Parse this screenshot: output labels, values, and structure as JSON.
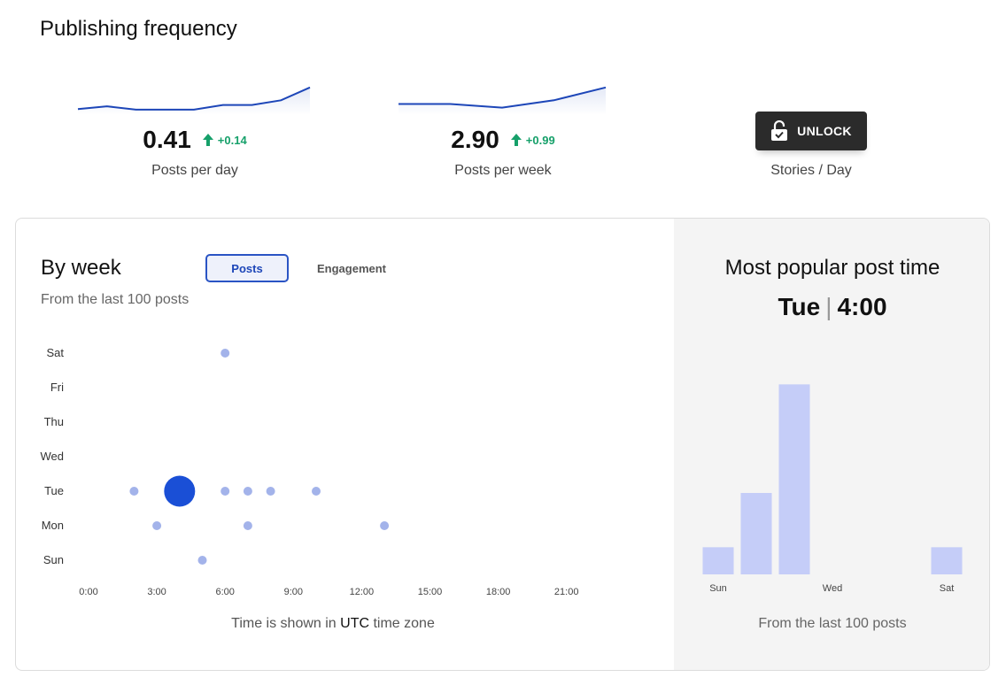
{
  "header": {
    "title": "Publishing frequency"
  },
  "metrics": [
    {
      "value": "0.41",
      "delta": "+0.14",
      "caption": "Posts per day",
      "trend": [
        0.18,
        0.26,
        0.16,
        0.16,
        0.16,
        0.3,
        0.3,
        0.44,
        0.82
      ]
    },
    {
      "value": "2.90",
      "delta": "+0.99",
      "caption": "Posts per week",
      "trend": [
        0.33,
        0.33,
        0.22,
        0.44,
        0.82
      ]
    }
  ],
  "unlock": {
    "label": "UNLOCK",
    "caption": "Stories / Day",
    "icon": "lock-open-icon"
  },
  "by_week": {
    "title": "By week",
    "subtitle": "From the last 100 posts",
    "tabs": [
      "Posts",
      "Engagement"
    ],
    "active_tab": "Posts",
    "note_prefix": "Time is shown in ",
    "note_strong": "UTC",
    "note_suffix": " time zone"
  },
  "popular": {
    "title": "Most popular post time",
    "day": "Tue",
    "time": "4:00",
    "footer": "From the last 100 posts"
  },
  "colors": {
    "accent": "#1d46b8",
    "dot": "#a3b3ea",
    "dot_highlight": "#1a4fd6",
    "bar": "#c5cdf8",
    "positive": "#16a06a",
    "spark": "#1d46b8"
  },
  "chart_data": [
    {
      "type": "scatter",
      "title": "By week",
      "x_ticks": [
        "0:00",
        "3:00",
        "6:00",
        "9:00",
        "12:00",
        "15:00",
        "18:00",
        "21:00"
      ],
      "y_categories": [
        "Sun",
        "Mon",
        "Tue",
        "Wed",
        "Thu",
        "Fri",
        "Sat"
      ],
      "xlim": [
        0,
        21
      ],
      "points": [
        {
          "day": "Sat",
          "hour": 6,
          "size": 1
        },
        {
          "day": "Tue",
          "hour": 2,
          "size": 1
        },
        {
          "day": "Tue",
          "hour": 4,
          "size": 3.5,
          "highlight": true
        },
        {
          "day": "Tue",
          "hour": 6,
          "size": 1
        },
        {
          "day": "Tue",
          "hour": 7,
          "size": 1
        },
        {
          "day": "Tue",
          "hour": 8,
          "size": 1
        },
        {
          "day": "Tue",
          "hour": 10,
          "size": 1
        },
        {
          "day": "Mon",
          "hour": 3,
          "size": 1
        },
        {
          "day": "Mon",
          "hour": 7,
          "size": 1
        },
        {
          "day": "Mon",
          "hour": 13,
          "size": 1
        },
        {
          "day": "Sun",
          "hour": 5,
          "size": 1
        }
      ],
      "grid": false
    },
    {
      "type": "bar",
      "title": "Most popular post time",
      "categories": [
        "Sun",
        "Mon",
        "Tue",
        "Wed",
        "Thu",
        "Fri",
        "Sat"
      ],
      "x_tick_labels": [
        "Sun",
        "",
        "",
        "Wed",
        "",
        "",
        "Sat"
      ],
      "values": [
        1,
        3,
        7,
        0,
        0,
        0,
        1
      ],
      "ylim": [
        0,
        7.5
      ],
      "grid": false
    }
  ]
}
